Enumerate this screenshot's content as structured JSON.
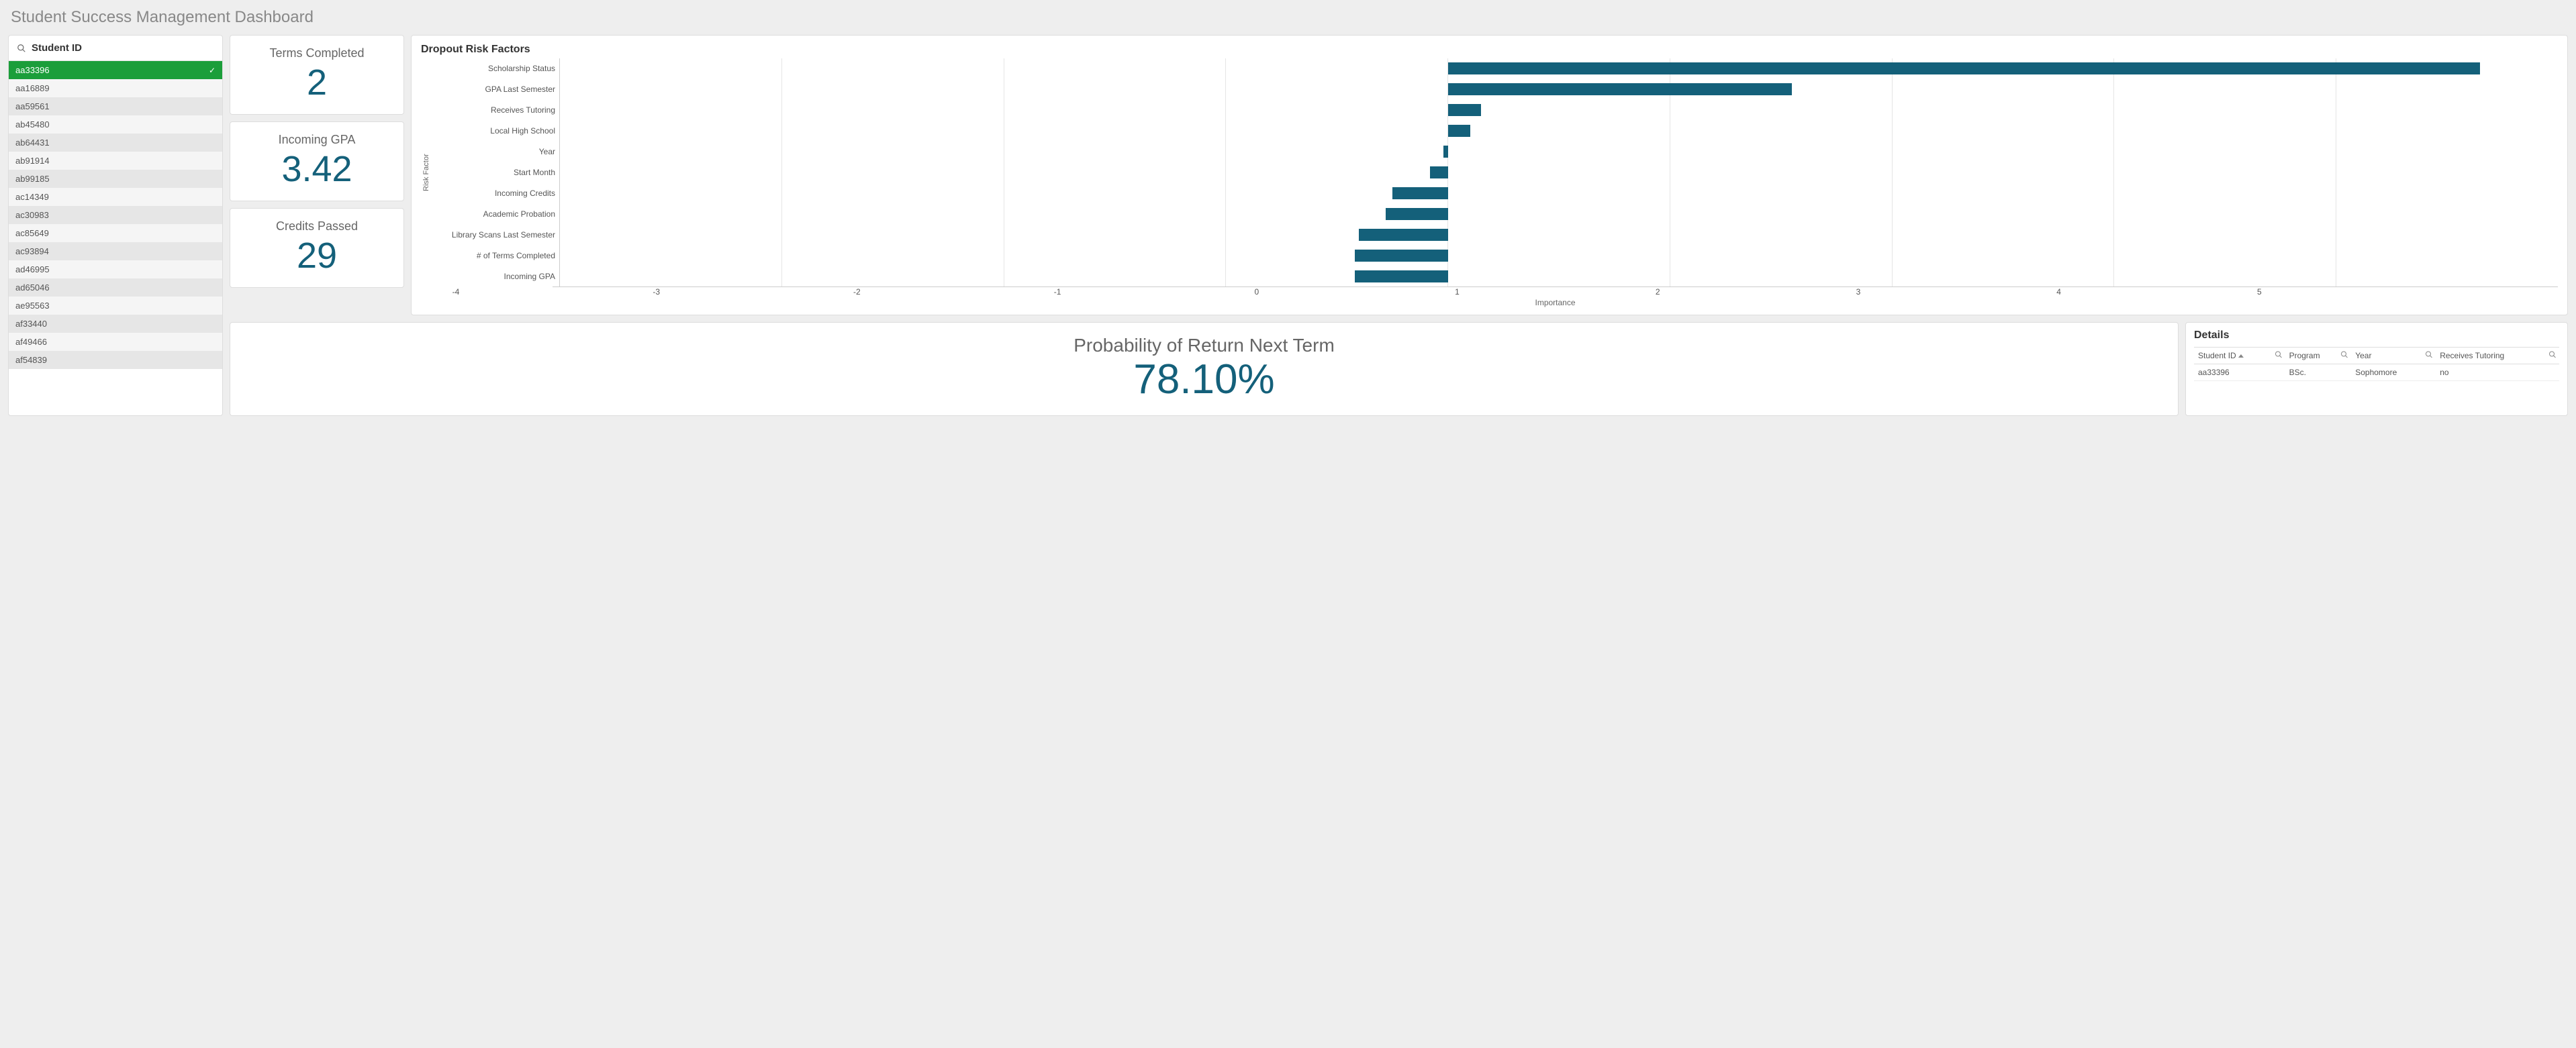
{
  "title": "Student Success Management Dashboard",
  "colors": {
    "accent": "#14607a",
    "selected_bg": "#1b9e3a",
    "bar_color": "#14607a",
    "grid": "#e5e5e5",
    "bg": "#eeeeee"
  },
  "sidebar": {
    "search_label": "Student ID",
    "selected_index": 0,
    "items": [
      {
        "id": "aa33396"
      },
      {
        "id": "aa16889"
      },
      {
        "id": "aa59561"
      },
      {
        "id": "ab45480"
      },
      {
        "id": "ab64431"
      },
      {
        "id": "ab91914"
      },
      {
        "id": "ab99185"
      },
      {
        "id": "ac14349"
      },
      {
        "id": "ac30983"
      },
      {
        "id": "ac85649"
      },
      {
        "id": "ac93894"
      },
      {
        "id": "ad46995"
      },
      {
        "id": "ad65046"
      },
      {
        "id": "ae95563"
      },
      {
        "id": "af33440"
      },
      {
        "id": "af49466"
      },
      {
        "id": "af54839"
      }
    ]
  },
  "kpis": {
    "terms": {
      "label": "Terms Completed",
      "value": "2"
    },
    "gpa": {
      "label": "Incoming GPA",
      "value": "3.42"
    },
    "credits": {
      "label": "Credits Passed",
      "value": "29"
    }
  },
  "risk_chart": {
    "type": "bar",
    "title": "Dropout Risk Factors",
    "y_axis_title": "Risk Factor",
    "x_axis_title": "Importance",
    "xlim": [
      -4,
      5
    ],
    "xtick_step": 1,
    "bar_color": "#14607a",
    "grid_color": "#e5e5e5",
    "items": [
      {
        "label": "Scholarship Status",
        "value": 4.65
      },
      {
        "label": "GPA Last Semester",
        "value": 1.55
      },
      {
        "label": "Receives Tutoring",
        "value": 0.15
      },
      {
        "label": "Local High School",
        "value": 0.1
      },
      {
        "label": "Year",
        "value": -0.02
      },
      {
        "label": "Start Month",
        "value": -0.08
      },
      {
        "label": "Incoming Credits",
        "value": -0.25
      },
      {
        "label": "Academic Probation",
        "value": -0.28
      },
      {
        "label": "Library Scans Last Semester",
        "value": -0.4
      },
      {
        "label": "# of Terms Completed",
        "value": -0.42
      },
      {
        "label": "Incoming GPA",
        "value": -0.42
      }
    ]
  },
  "probability": {
    "label": "Probability of Return Next Term",
    "value": "78.10%"
  },
  "details": {
    "title": "Details",
    "columns": [
      "Student ID",
      "Program",
      "Year",
      "Receives Tutoring"
    ],
    "sort_column": 0,
    "rows": [
      [
        "aa33396",
        "BSc.",
        "Sophomore",
        "no"
      ]
    ]
  }
}
